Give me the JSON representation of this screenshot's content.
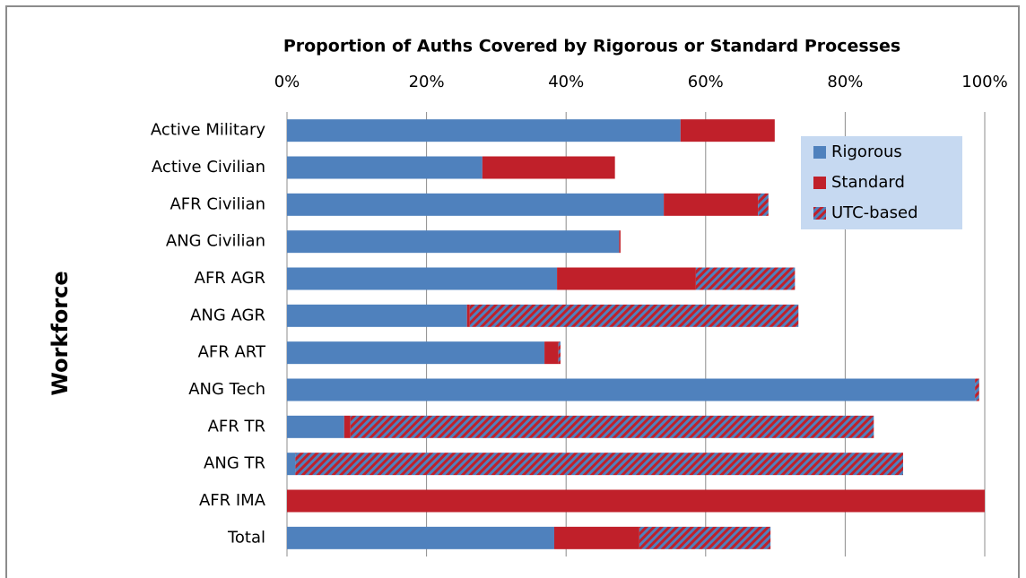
{
  "chart_data": {
    "type": "stacked_barh",
    "title": "Proportion of Auths Covered by Rigorous or Standard Processes",
    "y_label": "Workforce",
    "categories": [
      "Active Military",
      "Active Civilian",
      "AFR Civilian",
      "ANG Civilian",
      "AFR AGR",
      "ANG AGR",
      "AFR ART",
      "ANG Tech",
      "AFR TR",
      "ANG TR",
      "AFR IMA",
      "Total"
    ],
    "series": [
      {
        "name": "Rigorous",
        "color": "#4f81bd",
        "values": [
          56.4,
          28.0,
          54.0,
          47.6,
          38.7,
          25.8,
          36.9,
          98.6,
          8.2,
          1.2,
          0,
          38.3
        ]
      },
      {
        "name": "Standard",
        "color": "#c0202a",
        "values": [
          13.5,
          19.0,
          13.5,
          0.2,
          19.9,
          0.4,
          2.0,
          0,
          0.9,
          0,
          100,
          12.2
        ]
      },
      {
        "name": "UTC-based",
        "color": "#c0202a",
        "hatch": "#4f81bd",
        "values": [
          0,
          0,
          1.5,
          0,
          14.2,
          47.1,
          0.3,
          0.6,
          75.0,
          87.1,
          0,
          18.8
        ]
      }
    ],
    "xlim": [
      0,
      100
    ],
    "xticks": [
      {
        "value": 0,
        "label": "0%"
      },
      {
        "value": 20,
        "label": "20%"
      },
      {
        "value": 40,
        "label": "40%"
      },
      {
        "value": 60,
        "label": "60%"
      },
      {
        "value": 80,
        "label": "80%"
      },
      {
        "value": 100,
        "label": "100%"
      }
    ],
    "grid": true,
    "legend": "upper right"
  }
}
